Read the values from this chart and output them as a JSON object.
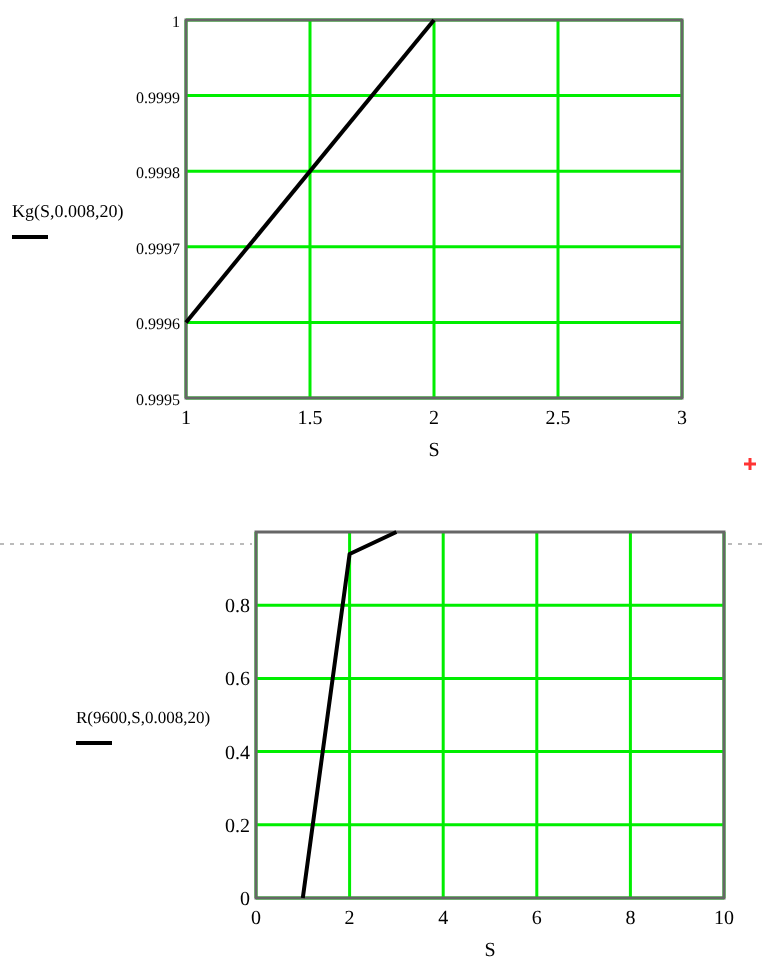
{
  "chart_data": [
    {
      "type": "line",
      "xlabel": "S",
      "x": [
        1,
        2
      ],
      "xlim": [
        1,
        3
      ],
      "xticks": [
        1,
        1.5,
        2,
        2.5,
        3
      ],
      "ylim": [
        0.9995,
        1
      ],
      "yticks": [
        0.9995,
        0.9996,
        0.9997,
        0.9998,
        0.9999,
        1
      ],
      "grid": true,
      "legend": "left",
      "series": [
        {
          "name": "Kg(S,0.008,20)",
          "color": "#000000",
          "values": [
            0.9996,
            1
          ]
        }
      ]
    },
    {
      "type": "line",
      "xlabel": "S",
      "x": [
        1,
        2,
        3
      ],
      "xlim": [
        0,
        10
      ],
      "xticks": [
        0,
        2,
        4,
        6,
        8,
        10
      ],
      "ylim": [
        0,
        1
      ],
      "yticks": [
        0,
        0.2,
        0.4,
        0.6,
        0.8
      ],
      "grid": true,
      "legend": "left",
      "series": [
        {
          "name": "R(9600,S,0.008,20)",
          "color": "#000000",
          "values": [
            0,
            0.94,
            1
          ]
        }
      ]
    }
  ]
}
